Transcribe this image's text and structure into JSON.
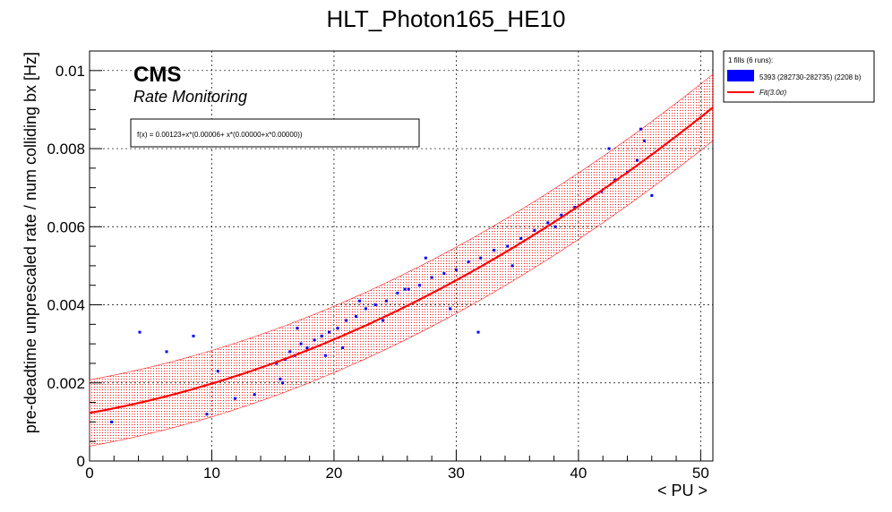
{
  "chart_data": {
    "type": "scatter",
    "title": "HLT_Photon165_HE10",
    "xlabel": "< PU >",
    "ylabel": "pre-deadtime unprescaled rate / num colliding bx [Hz]",
    "xlim": [
      0,
      51
    ],
    "ylim": [
      0,
      0.0105
    ],
    "x_ticks": [
      0,
      10,
      20,
      30,
      40,
      50
    ],
    "y_ticks": [
      0,
      0.002,
      0.004,
      0.006,
      0.008,
      0.01
    ],
    "x_tick_labels": [
      "0",
      "10",
      "20",
      "30",
      "40",
      "50"
    ],
    "y_tick_labels": [
      "0",
      "0.002",
      "0.004",
      "0.006",
      "0.008",
      "0.01"
    ],
    "grid": true,
    "cms_label": "CMS",
    "cms_sublabel": "Rate Monitoring",
    "fit_formula_text": "f(x) = 0.00123+x*(0.00006+ x*(0.00000+x*0.00000))",
    "fit": {
      "a0": 0.00123,
      "a1": 5.6e-05,
      "a2": 1.91e-06,
      "band_halfwidth": 0.00085
    },
    "legend": {
      "placement": "top-right, outside plot",
      "header": "1 fills (6 runs):",
      "entries": [
        {
          "label": "5393 (282730-282735) (2208 b)",
          "kind": "fill",
          "color": "#0000ff"
        },
        {
          "label": "Fit(3.0σ)",
          "kind": "line",
          "color": "#ff0000"
        }
      ]
    },
    "colors": {
      "points": "#0000ff",
      "fit": "#ff0000",
      "band": "#ff0000"
    },
    "series": [
      {
        "name": "5393 (282730-282735) (2208 b)",
        "x": [
          1.8,
          4.1,
          6.3,
          8.5,
          9.6,
          10.5,
          11.9,
          13.5,
          15.3,
          15.6,
          16.0,
          16.4,
          16.8,
          17.3,
          17.8,
          18.4,
          19.0,
          19.6,
          20.3,
          21.0,
          21.8,
          22.6,
          23.4,
          24.3,
          25.2,
          26.1,
          27.0,
          28.0,
          29.0,
          30.0,
          31.0,
          32.0,
          33.1,
          34.2,
          35.3,
          36.4,
          37.5,
          38.6,
          39.7,
          40.8,
          41.9,
          43.0,
          44.0,
          44.8,
          45.4,
          46.0,
          31.8,
          29.5,
          25.8,
          22.1,
          19.3,
          17.0,
          15.8,
          34.6,
          38.1,
          42.5,
          45.1,
          27.5,
          24.0,
          20.7
        ],
        "y": [
          0.001,
          0.0033,
          0.0028,
          0.0032,
          0.0012,
          0.0023,
          0.0016,
          0.0017,
          0.0025,
          0.0021,
          0.0026,
          0.0028,
          0.0027,
          0.003,
          0.0029,
          0.0031,
          0.0032,
          0.0033,
          0.0034,
          0.0036,
          0.0037,
          0.0039,
          0.004,
          0.0041,
          0.0043,
          0.0044,
          0.0045,
          0.0047,
          0.0048,
          0.0049,
          0.0051,
          0.0052,
          0.0054,
          0.0055,
          0.0057,
          0.0059,
          0.0061,
          0.0063,
          0.0065,
          0.0067,
          0.0069,
          0.0072,
          0.0074,
          0.0077,
          0.0082,
          0.0068,
          0.0033,
          0.0039,
          0.0044,
          0.0041,
          0.0027,
          0.0034,
          0.002,
          0.005,
          0.006,
          0.008,
          0.0085,
          0.0052,
          0.0036,
          0.0029
        ]
      }
    ]
  }
}
